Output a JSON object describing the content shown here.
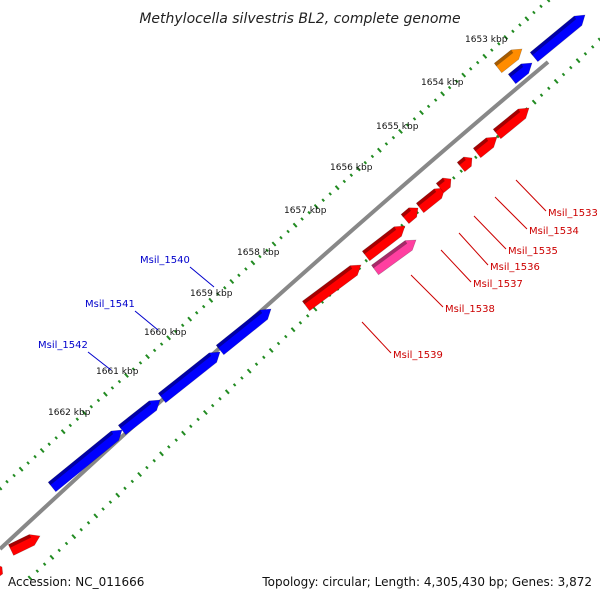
{
  "title": "Methylocella silvestris BL2, complete genome",
  "footer": {
    "accession": "Accession: NC_011666",
    "topology": "Topology: circular; Length: 4,305,430 bp; Genes: 3,872"
  },
  "colors": {
    "reverse_gene": "#0000ff",
    "forward_gene": "#ff0000",
    "rna_gene": "#ff8c00",
    "pseudo_gene": "#ff3fa0",
    "backbone": "#888888",
    "dots": "#228b22",
    "label_reverse": "#0000cc",
    "label_forward": "#cc0000"
  },
  "ticks": [
    {
      "label": "1653 kbp"
    },
    {
      "label": "1654 kbp"
    },
    {
      "label": "1655 kbp"
    },
    {
      "label": "1656 kbp"
    },
    {
      "label": "1657 kbp"
    },
    {
      "label": "1658 kbp"
    },
    {
      "label": "1659 kbp"
    },
    {
      "label": "1660 kbp"
    },
    {
      "label": "1661 kbp"
    },
    {
      "label": "1662 kbp"
    }
  ],
  "gene_labels": [
    {
      "label": "Msil_1540",
      "strand": "reverse"
    },
    {
      "label": "Msil_1541",
      "strand": "reverse"
    },
    {
      "label": "Msil_1542",
      "strand": "reverse"
    },
    {
      "label": "Msil_1533",
      "strand": "forward"
    },
    {
      "label": "Msil_1534",
      "strand": "forward"
    },
    {
      "label": "Msil_1535",
      "strand": "forward"
    },
    {
      "label": "Msil_1536",
      "strand": "forward"
    },
    {
      "label": "Msil_1537",
      "strand": "forward"
    },
    {
      "label": "Msil_1538",
      "strand": "forward"
    },
    {
      "label": "Msil_1539",
      "strand": "forward"
    }
  ]
}
